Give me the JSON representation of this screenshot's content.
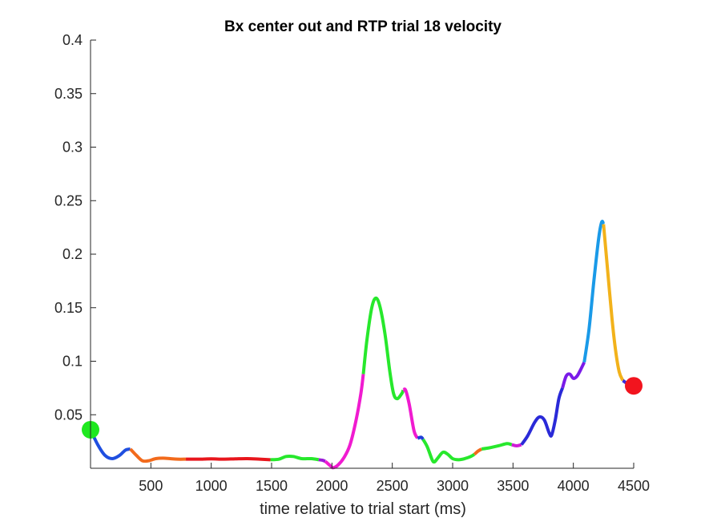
{
  "chart_data": {
    "type": "line",
    "title": "Bx  center out and RTP trial 18 velocity",
    "xlabel": "time relative to trial start (ms)",
    "ylabel": "",
    "xlim": [
      0,
      4500
    ],
    "ylim": [
      0,
      0.4
    ],
    "xticks": [
      500,
      1000,
      1500,
      2000,
      2500,
      3000,
      3500,
      4000,
      4500
    ],
    "xtick_labels": [
      "500",
      "1000",
      "1500",
      "2000",
      "2500",
      "3000",
      "3500",
      "4000",
      "4500"
    ],
    "yticks": [
      0.05,
      0.1,
      0.15,
      0.2,
      0.25,
      0.3,
      0.35,
      0.4
    ],
    "ytick_labels": [
      "0.05",
      "0.1",
      "0.15",
      "0.2",
      "0.25",
      "0.3",
      "0.35",
      "0.4"
    ],
    "grid": false,
    "legend": "none",
    "series": [
      {
        "color": "#1f4fe0",
        "points": [
          [
            0,
            0.036
          ],
          [
            60,
            0.022
          ],
          [
            120,
            0.012
          ],
          [
            180,
            0.009
          ],
          [
            240,
            0.012
          ],
          [
            290,
            0.017
          ],
          [
            330,
            0.018
          ]
        ]
      },
      {
        "color": "#f26a1b",
        "points": [
          [
            330,
            0.018
          ],
          [
            380,
            0.012
          ],
          [
            430,
            0.007
          ],
          [
            480,
            0.007
          ],
          [
            540,
            0.009
          ],
          [
            600,
            0.0095
          ],
          [
            660,
            0.009
          ],
          [
            720,
            0.0085
          ],
          [
            790,
            0.0085
          ]
        ]
      },
      {
        "color": "#e8161c",
        "points": [
          [
            790,
            0.0085
          ],
          [
            900,
            0.0085
          ],
          [
            1000,
            0.0088
          ],
          [
            1100,
            0.0085
          ],
          [
            1200,
            0.0088
          ],
          [
            1300,
            0.009
          ],
          [
            1400,
            0.0085
          ],
          [
            1490,
            0.008
          ]
        ]
      },
      {
        "color": "#27e82c",
        "points": [
          [
            1490,
            0.008
          ],
          [
            1560,
            0.0085
          ],
          [
            1620,
            0.011
          ],
          [
            1680,
            0.011
          ],
          [
            1750,
            0.009
          ],
          [
            1830,
            0.009
          ],
          [
            1890,
            0.008
          ]
        ]
      },
      {
        "color": "#9b1bd8",
        "points": [
          [
            1890,
            0.008
          ],
          [
            1920,
            0.0075
          ],
          [
            1945,
            0.0065
          ]
        ]
      },
      {
        "color": "#f01bd0",
        "points": [
          [
            1945,
            0.0065
          ],
          [
            1990,
            0.002
          ],
          [
            2010,
            0.0005
          ],
          [
            2050,
            0.003
          ],
          [
            2100,
            0.01
          ],
          [
            2150,
            0.022
          ],
          [
            2200,
            0.045
          ],
          [
            2240,
            0.07
          ],
          [
            2260,
            0.088
          ]
        ]
      },
      {
        "color": "#27e82c",
        "points": [
          [
            2260,
            0.088
          ],
          [
            2290,
            0.12
          ],
          [
            2330,
            0.15
          ],
          [
            2365,
            0.159
          ],
          [
            2400,
            0.15
          ],
          [
            2440,
            0.125
          ],
          [
            2480,
            0.09
          ],
          [
            2510,
            0.07
          ],
          [
            2540,
            0.065
          ],
          [
            2580,
            0.07
          ],
          [
            2590,
            0.073
          ]
        ]
      },
      {
        "color": "#f01bd0",
        "points": [
          [
            2590,
            0.073
          ],
          [
            2610,
            0.073
          ],
          [
            2640,
            0.06
          ],
          [
            2680,
            0.035
          ],
          [
            2710,
            0.028
          ]
        ]
      },
      {
        "color": "#1f3fd8",
        "points": [
          [
            2710,
            0.028
          ],
          [
            2740,
            0.029
          ],
          [
            2755,
            0.027
          ]
        ]
      },
      {
        "color": "#27e82c",
        "points": [
          [
            2755,
            0.027
          ],
          [
            2790,
            0.02
          ],
          [
            2830,
            0.008
          ],
          [
            2850,
            0.006
          ],
          [
            2880,
            0.01
          ],
          [
            2920,
            0.015
          ],
          [
            2960,
            0.013
          ],
          [
            3000,
            0.009
          ],
          [
            3050,
            0.008
          ],
          [
            3100,
            0.009
          ],
          [
            3150,
            0.011
          ],
          [
            3180,
            0.013
          ]
        ]
      },
      {
        "color": "#f26a1b",
        "points": [
          [
            3180,
            0.013
          ],
          [
            3210,
            0.016
          ],
          [
            3240,
            0.018
          ]
        ]
      },
      {
        "color": "#27e82c",
        "points": [
          [
            3240,
            0.018
          ],
          [
            3300,
            0.019
          ],
          [
            3380,
            0.021
          ],
          [
            3450,
            0.023
          ],
          [
            3490,
            0.022
          ]
        ]
      },
      {
        "color": "#d01bd8",
        "points": [
          [
            3490,
            0.022
          ],
          [
            3530,
            0.021
          ],
          [
            3570,
            0.022
          ]
        ]
      },
      {
        "color": "#2a2ad8",
        "points": [
          [
            3570,
            0.022
          ],
          [
            3620,
            0.03
          ],
          [
            3680,
            0.043
          ],
          [
            3720,
            0.048
          ],
          [
            3760,
            0.045
          ],
          [
            3800,
            0.033
          ],
          [
            3820,
            0.031
          ],
          [
            3850,
            0.045
          ],
          [
            3880,
            0.065
          ],
          [
            3910,
            0.075
          ]
        ]
      },
      {
        "color": "#7a1be8",
        "points": [
          [
            3910,
            0.075
          ],
          [
            3940,
            0.086
          ],
          [
            3970,
            0.088
          ],
          [
            4000,
            0.084
          ],
          [
            4030,
            0.086
          ],
          [
            4060,
            0.092
          ],
          [
            4090,
            0.099
          ]
        ]
      },
      {
        "color": "#1a9ae8",
        "points": [
          [
            4090,
            0.099
          ],
          [
            4130,
            0.13
          ],
          [
            4170,
            0.175
          ],
          [
            4210,
            0.215
          ],
          [
            4235,
            0.23
          ],
          [
            4250,
            0.228
          ]
        ]
      },
      {
        "color": "#f2b21b",
        "points": [
          [
            4250,
            0.228
          ],
          [
            4280,
            0.19
          ],
          [
            4320,
            0.14
          ],
          [
            4350,
            0.11
          ],
          [
            4380,
            0.09
          ],
          [
            4410,
            0.082
          ]
        ]
      },
      {
        "color": "#3a2ad8",
        "points": [
          [
            4410,
            0.082
          ],
          [
            4450,
            0.079
          ],
          [
            4490,
            0.078
          ]
        ]
      }
    ],
    "markers": [
      {
        "x": 0,
        "y": 0.036,
        "color": "#1fe81f"
      },
      {
        "x": 4500,
        "y": 0.077,
        "color": "#f2141e"
      }
    ]
  }
}
